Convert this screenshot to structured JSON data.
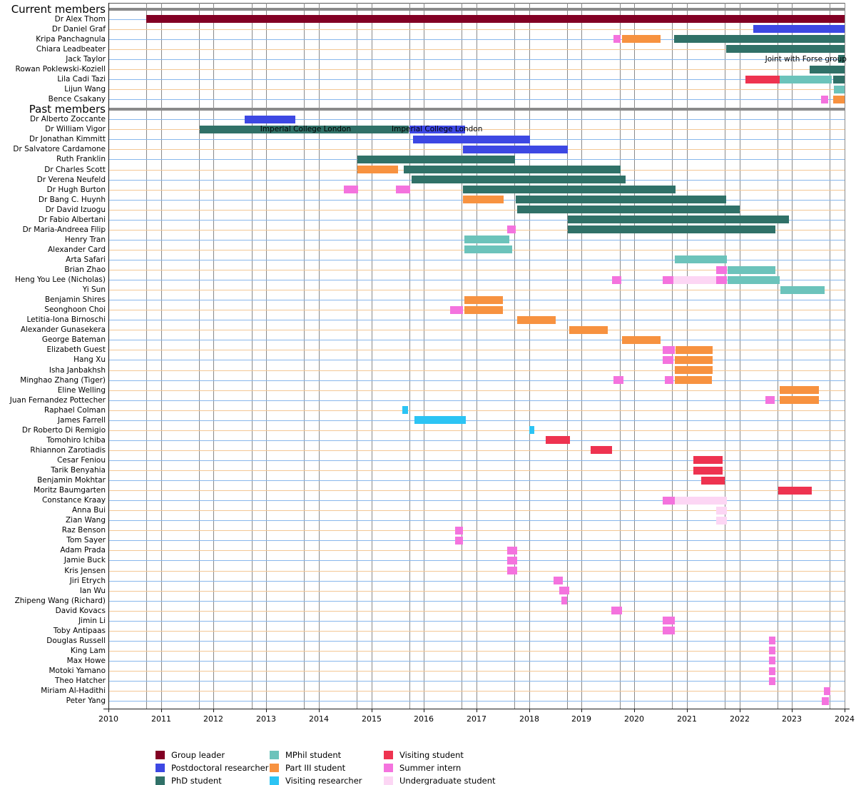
{
  "chart_data": {
    "type": "gantt",
    "title": "",
    "x_axis": {
      "min": 2010,
      "max": 2024,
      "ticks": [
        2010,
        2011,
        2012,
        2013,
        2014,
        2015,
        2016,
        2017,
        2018,
        2019,
        2020,
        2021,
        2022,
        2023,
        2024
      ],
      "gridlines": "vertical lines at each 1 January and each 1 October (academic year start)"
    },
    "row_guide_colors": {
      "odd": "#88b7ec",
      "even": "#f4c794"
    },
    "grid_color": "#8a8a8a",
    "section_rule_color": "#8a8a8a",
    "axis_color": "#1a1a1a",
    "roles": [
      {
        "id": "leader",
        "label": "Group leader",
        "color": "#820024"
      },
      {
        "id": "postdoc",
        "label": "Postdoctoral researcher",
        "color": "#3d48e3"
      },
      {
        "id": "phd",
        "label": "PhD student",
        "color": "#307168"
      },
      {
        "id": "mphil",
        "label": "MPhil student",
        "color": "#6cc3bb"
      },
      {
        "id": "part3",
        "label": "Part III student",
        "color": "#f79240"
      },
      {
        "id": "visitres",
        "label": "Visiting researcher",
        "color": "#2cc4f4"
      },
      {
        "id": "visitstu",
        "label": "Visiting student",
        "color": "#ee3350"
      },
      {
        "id": "intern",
        "label": "Summer intern",
        "color": "#f473de"
      },
      {
        "id": "ugrad",
        "label": "Undergraduate student",
        "color": "#fcd6f4"
      }
    ],
    "segment_format": [
      "role_id",
      "start_year_decimal",
      "end_year_decimal"
    ],
    "sections": [
      {
        "header": "Current members",
        "members": [
          {
            "name": "Dr Alex Thom",
            "segments": [
              [
                "leader",
                2010.72,
                2024
              ]
            ]
          },
          {
            "name": "Dr Daniel Graf",
            "segments": [
              [
                "postdoc",
                2022.26,
                2024
              ]
            ]
          },
          {
            "name": "Kripa Panchagnula",
            "segments": [
              [
                "intern",
                2019.6,
                2019.74
              ],
              [
                "part3",
                2019.77,
                2020.5
              ],
              [
                "phd",
                2020.76,
                2024
              ]
            ]
          },
          {
            "name": "Chiara Leadbeater",
            "segments": [
              [
                "phd",
                2021.75,
                2024
              ]
            ]
          },
          {
            "name": "Jack Taylor",
            "segments": [
              [
                "phd",
                2023.88,
                2024
              ]
            ]
          },
          {
            "name": "Rowan Poklewski-Koziell",
            "segments": [
              [
                "phd",
                2023.33,
                2024
              ]
            ]
          },
          {
            "name": "Lila Cadi Tazi",
            "segments": [
              [
                "visitstu",
                2022.12,
                2022.77
              ],
              [
                "mphil",
                2022.77,
                2023.76
              ],
              [
                "phd",
                2023.78,
                2024
              ]
            ]
          },
          {
            "name": "Lijun Wang",
            "segments": [
              [
                "mphil",
                2023.8,
                2024
              ]
            ]
          },
          {
            "name": "Bence Csakany",
            "segments": [
              [
                "intern",
                2023.55,
                2023.69
              ],
              [
                "part3",
                2023.78,
                2024
              ]
            ]
          }
        ]
      },
      {
        "header": "Past members",
        "members": [
          {
            "name": "Dr Alberto Zoccante",
            "segments": [
              [
                "postdoc",
                2012.59,
                2013.55
              ]
            ]
          },
          {
            "name": "Dr William Vigor",
            "segments": [
              [
                "phd",
                2011.74,
                2015.72
              ],
              [
                "postdoc",
                2015.72,
                2016.78
              ]
            ]
          },
          {
            "name": "Dr Jonathan Kimmitt",
            "segments": [
              [
                "postdoc",
                2015.79,
                2018.01
              ]
            ]
          },
          {
            "name": "Dr Salvatore Cardamone",
            "segments": [
              [
                "postdoc",
                2016.74,
                2018.74
              ]
            ]
          },
          {
            "name": "Ruth Franklin",
            "segments": [
              [
                "phd",
                2014.74,
                2017.74
              ]
            ]
          },
          {
            "name": "Dr Charles Scott",
            "segments": [
              [
                "part3",
                2014.74,
                2015.51
              ],
              [
                "phd",
                2015.62,
                2019.74
              ]
            ]
          },
          {
            "name": "Dr Verena Neufeld",
            "segments": [
              [
                "phd",
                2015.76,
                2019.83
              ]
            ]
          },
          {
            "name": "Dr Hugh Burton",
            "segments": [
              [
                "intern",
                2014.47,
                2014.74
              ],
              [
                "intern",
                2015.47,
                2015.74
              ],
              [
                "phd",
                2016.74,
                2020.78
              ]
            ]
          },
          {
            "name": "Dr Bang C. Huynh",
            "segments": [
              [
                "part3",
                2016.74,
                2017.51
              ],
              [
                "phd",
                2017.74,
                2021.74
              ]
            ]
          },
          {
            "name": "Dr David Izuogu",
            "segments": [
              [
                "phd",
                2017.77,
                2022.0
              ]
            ]
          },
          {
            "name": "Dr Fabio Albertani",
            "segments": [
              [
                "phd",
                2018.74,
                2022.95
              ]
            ]
          },
          {
            "name": "Dr Maria-Andreea Filip",
            "segments": [
              [
                "intern",
                2017.58,
                2017.74
              ],
              [
                "phd",
                2018.74,
                2022.69
              ]
            ]
          },
          {
            "name": "Henry Tran",
            "segments": [
              [
                "mphil",
                2016.77,
                2017.63
              ]
            ]
          },
          {
            "name": "Alexander Card",
            "segments": [
              [
                "mphil",
                2016.77,
                2017.68
              ]
            ]
          },
          {
            "name": "Arta Safari",
            "segments": [
              [
                "mphil",
                2020.77,
                2021.76
              ]
            ]
          },
          {
            "name": "Brian Zhao",
            "segments": [
              [
                "intern",
                2021.56,
                2021.76
              ],
              [
                "mphil",
                2021.78,
                2022.69
              ]
            ]
          },
          {
            "name": "Heng You Lee (Nicholas)",
            "segments": [
              [
                "intern",
                2019.58,
                2019.76
              ],
              [
                "intern",
                2020.54,
                2020.74
              ],
              [
                "ugrad",
                2020.74,
                2021.56
              ],
              [
                "intern",
                2021.56,
                2021.76
              ],
              [
                "mphil",
                2021.78,
                2022.77
              ]
            ]
          },
          {
            "name": "Yi Sun",
            "segments": [
              [
                "mphil",
                2022.78,
                2023.62
              ]
            ]
          },
          {
            "name": "Benjamin Shires",
            "segments": [
              [
                "part3",
                2016.77,
                2017.5
              ]
            ]
          },
          {
            "name": "Seonghoon Choi",
            "segments": [
              [
                "intern",
                2016.5,
                2016.74
              ],
              [
                "part3",
                2016.77,
                2017.5
              ]
            ]
          },
          {
            "name": "Letitia-Iona Birnoschi",
            "segments": [
              [
                "part3",
                2017.77,
                2018.5
              ]
            ]
          },
          {
            "name": "Alexander Gunasekera",
            "segments": [
              [
                "part3",
                2018.77,
                2019.5
              ]
            ]
          },
          {
            "name": "George Bateman",
            "segments": [
              [
                "part3",
                2019.77,
                2020.5
              ]
            ]
          },
          {
            "name": "Elizabeth Guest",
            "segments": [
              [
                "intern",
                2020.54,
                2020.77
              ],
              [
                "part3",
                2020.79,
                2021.49
              ]
            ]
          },
          {
            "name": "Hang Xu",
            "segments": [
              [
                "intern",
                2020.54,
                2020.74
              ],
              [
                "part3",
                2020.77,
                2021.49
              ]
            ]
          },
          {
            "name": "Isha Janbakhsh",
            "segments": [
              [
                "part3",
                2020.77,
                2021.49
              ]
            ]
          },
          {
            "name": "Minghao Zhang (Tiger)",
            "segments": [
              [
                "intern",
                2019.6,
                2019.79
              ],
              [
                "intern",
                2020.58,
                2020.74
              ],
              [
                "part3",
                2020.77,
                2021.47
              ]
            ]
          },
          {
            "name": "Eline Welling",
            "segments": [
              [
                "part3",
                2022.77,
                2023.52
              ]
            ]
          },
          {
            "name": "Juan Fernandez Pottecher",
            "segments": [
              [
                "intern",
                2022.49,
                2022.67
              ],
              [
                "part3",
                2022.77,
                2023.52
              ]
            ]
          },
          {
            "name": "Raphael Colman",
            "segments": [
              [
                "visitres",
                2015.59,
                2015.7
              ]
            ]
          },
          {
            "name": "James Farrell",
            "segments": [
              [
                "visitres",
                2015.82,
                2016.79
              ]
            ]
          },
          {
            "name": "Dr Roberto Di Remigio",
            "segments": [
              [
                "visitres",
                2018.01,
                2018.1
              ]
            ]
          },
          {
            "name": "Tomohiro Ichiba",
            "segments": [
              [
                "visitstu",
                2018.31,
                2018.77
              ]
            ]
          },
          {
            "name": "Rhiannon Zarotiadis",
            "segments": [
              [
                "visitstu",
                2019.17,
                2019.58
              ]
            ]
          },
          {
            "name": "Cesar Feniou",
            "segments": [
              [
                "visitstu",
                2021.13,
                2021.68
              ]
            ]
          },
          {
            "name": "Tarik Benyahia",
            "segments": [
              [
                "visitstu",
                2021.13,
                2021.68
              ]
            ]
          },
          {
            "name": "Benjamin Mokhtar",
            "segments": [
              [
                "visitstu",
                2021.27,
                2021.72
              ]
            ]
          },
          {
            "name": "Moritz Baumgarten",
            "segments": [
              [
                "visitstu",
                2022.74,
                2023.38
              ]
            ]
          },
          {
            "name": "Constance Kraay",
            "segments": [
              [
                "intern",
                2020.54,
                2020.77
              ],
              [
                "ugrad",
                2020.77,
                2021.76
              ]
            ]
          },
          {
            "name": "Anna Bui",
            "segments": [
              [
                "ugrad",
                2021.56,
                2021.76
              ]
            ]
          },
          {
            "name": "Zian Wang",
            "segments": [
              [
                "ugrad",
                2021.56,
                2021.76
              ]
            ]
          },
          {
            "name": "Raz Benson",
            "segments": [
              [
                "intern",
                2016.59,
                2016.74
              ]
            ]
          },
          {
            "name": "Tom Sayer",
            "segments": [
              [
                "intern",
                2016.59,
                2016.74
              ]
            ]
          },
          {
            "name": "Adam Prada",
            "segments": [
              [
                "intern",
                2017.58,
                2017.77
              ]
            ]
          },
          {
            "name": "Jamie Buck",
            "segments": [
              [
                "intern",
                2017.58,
                2017.77
              ]
            ]
          },
          {
            "name": "Kris Jensen",
            "segments": [
              [
                "intern",
                2017.58,
                2017.77
              ]
            ]
          },
          {
            "name": "Jiri Etrych",
            "segments": [
              [
                "intern",
                2018.47,
                2018.65
              ]
            ]
          },
          {
            "name": "Ian Wu",
            "segments": [
              [
                "intern",
                2018.58,
                2018.77
              ]
            ]
          },
          {
            "name": "Zhipeng Wang (Richard)",
            "segments": [
              [
                "intern",
                2018.61,
                2018.72
              ]
            ]
          },
          {
            "name": "David Kovacs",
            "segments": [
              [
                "intern",
                2019.56,
                2019.76
              ]
            ]
          },
          {
            "name": "Jimin Li",
            "segments": [
              [
                "intern",
                2020.54,
                2020.77
              ]
            ]
          },
          {
            "name": "Toby Antipaas",
            "segments": [
              [
                "intern",
                2020.54,
                2020.77
              ]
            ]
          },
          {
            "name": "Douglas Russell",
            "segments": [
              [
                "intern",
                2022.56,
                2022.68
              ]
            ]
          },
          {
            "name": "King Lam",
            "segments": [
              [
                "intern",
                2022.56,
                2022.68
              ]
            ]
          },
          {
            "name": "Max Howe",
            "segments": [
              [
                "intern",
                2022.56,
                2022.68
              ]
            ]
          },
          {
            "name": "Motoki Yamano",
            "segments": [
              [
                "intern",
                2022.56,
                2022.68
              ]
            ]
          },
          {
            "name": "Theo Hatcher",
            "segments": [
              [
                "intern",
                2022.56,
                2022.68
              ]
            ]
          },
          {
            "name": "Miriam Al-Hadithi",
            "segments": [
              [
                "intern",
                2023.6,
                2023.72
              ]
            ]
          },
          {
            "name": "Peter Yang",
            "segments": [
              [
                "intern",
                2023.56,
                2023.7
              ]
            ]
          }
        ]
      }
    ],
    "annotations": [
      {
        "text": "Imperial College London",
        "row": "Dr William Vigor",
        "year": 2013.75,
        "align": "center"
      },
      {
        "text": "Imperial College London",
        "row": "Dr William Vigor",
        "year": 2016.25,
        "align": "center"
      },
      {
        "text": "Joint with Forse group",
        "row": "Jack Taylor",
        "year": 2024.04,
        "align": "right"
      }
    ],
    "legend": {
      "columns": 3,
      "rows_per_column": 3,
      "order": [
        "leader",
        "postdoc",
        "phd",
        "mphil",
        "part3",
        "visitres",
        "visitstu",
        "intern",
        "ugrad"
      ]
    }
  }
}
